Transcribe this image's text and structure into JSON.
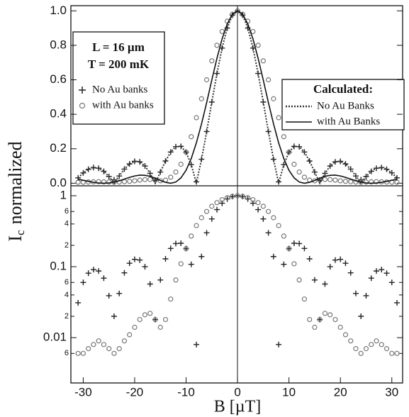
{
  "chart_data": [
    {
      "type": "line",
      "ylabel_symbol": "I",
      "ylabel_subscript": "c",
      "ylabel_text": "normalized",
      "annotations": [
        "L = 16 µm",
        "T = 200 mK"
      ],
      "legend_title": "Calculated:",
      "xlim": [
        -32.4,
        32.1
      ],
      "ylim": [
        -0.015,
        1.03
      ],
      "yticks": [
        {
          "value": 0,
          "label": "0.0"
        },
        0.2,
        0.4,
        0.6,
        0.8,
        {
          "value": 1,
          "label": "1.0"
        }
      ],
      "x": [
        -31,
        -30,
        -29,
        -28,
        -27,
        -26,
        -25,
        -24,
        -23,
        -22,
        -21,
        -20,
        -19,
        -18,
        -17,
        -16,
        -15,
        -14,
        -13,
        -12,
        -11,
        -10,
        -9,
        -8,
        -7,
        -6,
        -5,
        -4,
        -3,
        -2,
        -1,
        0,
        1,
        2,
        3,
        4,
        5,
        6,
        7,
        8,
        9,
        10,
        11,
        12,
        13,
        14,
        15,
        16,
        17,
        18,
        19,
        20,
        21,
        22,
        23,
        24,
        25,
        26,
        27,
        28,
        29,
        30,
        31
      ],
      "series": [
        {
          "name": "No Au banks",
          "marker": "plus",
          "color": "#222",
          "values": [
            0.031,
            0.06,
            0.081,
            0.091,
            0.087,
            0.069,
            0.039,
            0.02,
            0.042,
            0.082,
            0.112,
            0.127,
            0.124,
            0.1,
            0.057,
            0.018,
            0.065,
            0.129,
            0.181,
            0.212,
            0.214,
            0.18,
            0.108,
            0.008,
            0.139,
            0.3,
            0.471,
            0.637,
            0.784,
            0.9,
            0.975,
            1,
            0.975,
            0.9,
            0.784,
            0.637,
            0.471,
            0.3,
            0.139,
            0.008,
            0.108,
            0.18,
            0.214,
            0.212,
            0.181,
            0.129,
            0.065,
            0.018,
            0.057,
            0.1,
            0.124,
            0.127,
            0.112,
            0.082,
            0.042,
            0.02,
            0.039,
            0.069,
            0.087,
            0.091,
            0.081,
            0.06,
            0.031
          ]
        },
        {
          "name": "with Au banks",
          "marker": "circle",
          "color": "#777",
          "values": [
            0.006,
            0.006,
            0.007,
            0.008,
            0.009,
            0.008,
            0.007,
            0.006,
            0.007,
            0.009,
            0.011,
            0.014,
            0.018,
            0.021,
            0.022,
            0.018,
            0.014,
            0.018,
            0.035,
            0.065,
            0.11,
            0.18,
            0.27,
            0.38,
            0.49,
            0.6,
            0.71,
            0.8,
            0.88,
            0.94,
            0.98,
            1,
            0.98,
            0.94,
            0.88,
            0.8,
            0.71,
            0.6,
            0.49,
            0.38,
            0.27,
            0.18,
            0.11,
            0.065,
            0.035,
            0.018,
            0.014,
            0.018,
            0.022,
            0.021,
            0.018,
            0.014,
            0.011,
            0.009,
            0.007,
            0.006,
            0.007,
            0.008,
            0.009,
            0.008,
            0.007,
            0.006,
            0.006
          ]
        },
        {
          "name": "No Au Banks",
          "line": "dotted",
          "color": "#333",
          "legend": "calculated",
          "values": [
            0.031,
            0.06,
            0.081,
            0.091,
            0.087,
            0.069,
            0.039,
            0,
            0.042,
            0.082,
            0.112,
            0.127,
            0.124,
            0.1,
            0.057,
            0,
            0.065,
            0.129,
            0.181,
            0.212,
            0.214,
            0.18,
            0.108,
            0,
            0.139,
            0.3,
            0.471,
            0.637,
            0.784,
            0.9,
            0.975,
            1,
            0.975,
            0.9,
            0.784,
            0.637,
            0.471,
            0.3,
            0.139,
            0,
            0.108,
            0.18,
            0.214,
            0.212,
            0.181,
            0.129,
            0.065,
            0,
            0.057,
            0.1,
            0.124,
            0.127,
            0.112,
            0.082,
            0.042,
            0,
            0.039,
            0.069,
            0.087,
            0.091,
            0.081,
            0.06,
            0.031
          ]
        },
        {
          "name": "with Au Banks",
          "line": "solid",
          "color": "#111",
          "legend": "calculated",
          "values": [
            0.023,
            0.017,
            0.011,
            0.005,
            0.001,
            0,
            0.002,
            0.006,
            0.014,
            0.024,
            0.034,
            0.042,
            0.047,
            0.046,
            0.04,
            0.029,
            0.016,
            0.005,
            0,
            0.007,
            0.031,
            0.075,
            0.143,
            0.234,
            0.344,
            0.469,
            0.599,
            0.725,
            0.837,
            0.924,
            0.981,
            1,
            0.981,
            0.924,
            0.837,
            0.725,
            0.599,
            0.469,
            0.344,
            0.234,
            0.143,
            0.075,
            0.031,
            0.007,
            0,
            0.005,
            0.016,
            0.029,
            0.04,
            0.046,
            0.047,
            0.042,
            0.034,
            0.024,
            0.014,
            0.006,
            0.002,
            0,
            0.001,
            0.005,
            0.011,
            0.017,
            0.023
          ]
        }
      ]
    },
    {
      "type": "line",
      "log_y": true,
      "xlabel": "B [µT]",
      "xlim": [
        -32.4,
        32.1
      ],
      "ylim": [
        0.0023,
        1.38
      ],
      "xticks": [
        -30,
        -20,
        -10,
        0,
        10,
        20,
        30
      ],
      "yticks": [
        1,
        {
          "value": 0.6,
          "label": "6"
        },
        {
          "value": 0.4,
          "label": "4"
        },
        {
          "value": 0.2,
          "label": "2"
        },
        0.1,
        {
          "value": 0.06,
          "label": "6"
        },
        {
          "value": 0.04,
          "label": "4"
        },
        {
          "value": 0.02,
          "label": "2"
        },
        0.01,
        {
          "value": 0.006,
          "label": "6"
        }
      ],
      "x": [
        -31,
        -30,
        -29,
        -28,
        -27,
        -26,
        -25,
        -24,
        -23,
        -22,
        -21,
        -20,
        -19,
        -18,
        -17,
        -16,
        -15,
        -14,
        -13,
        -12,
        -11,
        -10,
        -9,
        -8,
        -7,
        -6,
        -5,
        -4,
        -3,
        -2,
        -1,
        0,
        1,
        2,
        3,
        4,
        5,
        6,
        7,
        8,
        9,
        10,
        11,
        12,
        13,
        14,
        15,
        16,
        17,
        18,
        19,
        20,
        21,
        22,
        23,
        24,
        25,
        26,
        27,
        28,
        29,
        30,
        31
      ],
      "series": [
        {
          "name": "No Au banks",
          "marker": "plus",
          "color": "#222",
          "values": [
            0.031,
            0.06,
            0.081,
            0.091,
            0.087,
            0.069,
            0.039,
            0.02,
            0.042,
            0.082,
            0.112,
            0.127,
            0.124,
            0.1,
            0.057,
            0.018,
            0.065,
            0.129,
            0.181,
            0.212,
            0.214,
            0.18,
            0.108,
            0.008,
            0.139,
            0.3,
            0.471,
            0.637,
            0.784,
            0.9,
            0.975,
            1,
            0.975,
            0.9,
            0.784,
            0.637,
            0.471,
            0.3,
            0.139,
            0.008,
            0.108,
            0.18,
            0.214,
            0.212,
            0.181,
            0.129,
            0.065,
            0.018,
            0.057,
            0.1,
            0.124,
            0.127,
            0.112,
            0.082,
            0.042,
            0.02,
            0.039,
            0.069,
            0.087,
            0.091,
            0.081,
            0.06,
            0.031
          ]
        },
        {
          "name": "with Au banks",
          "marker": "circle",
          "color": "#777",
          "values": [
            0.006,
            0.006,
            0.007,
            0.008,
            0.009,
            0.008,
            0.007,
            0.006,
            0.007,
            0.009,
            0.011,
            0.014,
            0.018,
            0.021,
            0.022,
            0.018,
            0.014,
            0.018,
            0.035,
            0.065,
            0.11,
            0.18,
            0.27,
            0.38,
            0.49,
            0.6,
            0.71,
            0.8,
            0.88,
            0.94,
            0.98,
            1,
            0.98,
            0.94,
            0.88,
            0.8,
            0.71,
            0.6,
            0.49,
            0.38,
            0.27,
            0.18,
            0.11,
            0.065,
            0.035,
            0.018,
            0.014,
            0.018,
            0.022,
            0.021,
            0.018,
            0.014,
            0.011,
            0.009,
            0.007,
            0.006,
            0.007,
            0.008,
            0.009,
            0.008,
            0.007,
            0.006,
            0.006
          ]
        }
      ]
    }
  ]
}
